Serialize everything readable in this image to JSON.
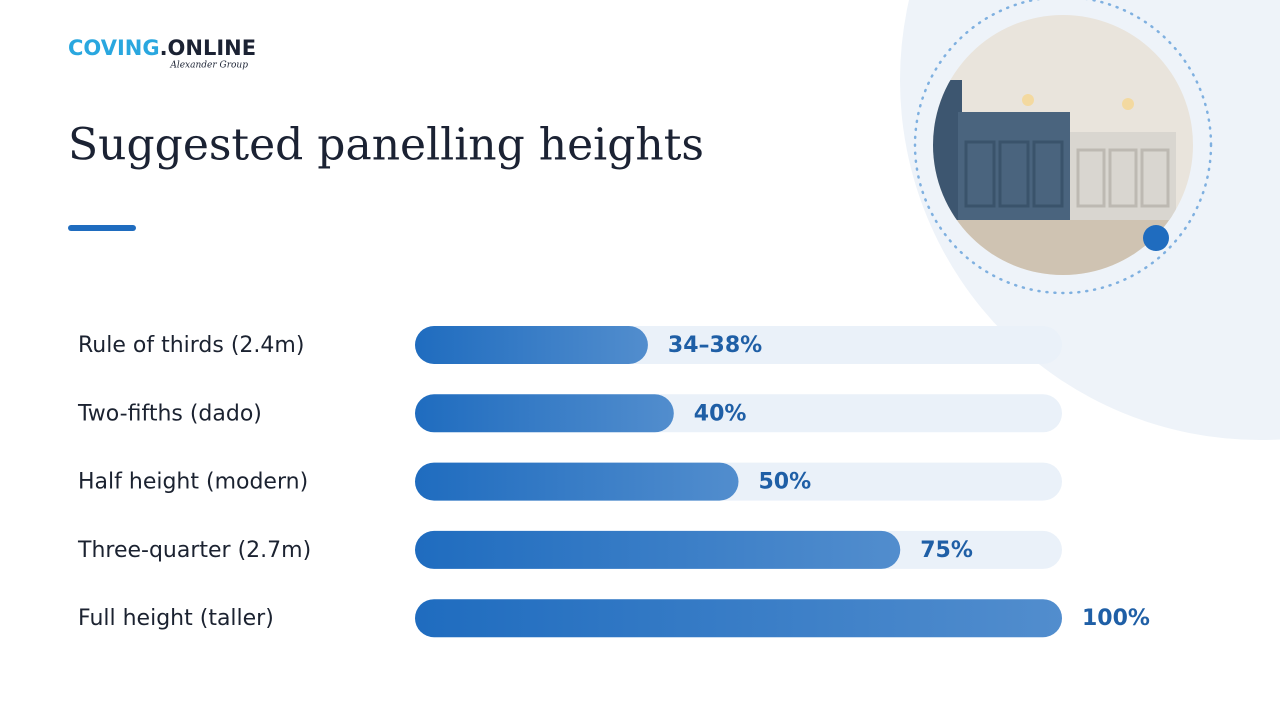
{
  "brand": {
    "primary": "COVING",
    "secondary": ".ONLINE",
    "tagline": "Alexander Group"
  },
  "chart_data": {
    "type": "bar",
    "orientation": "horizontal",
    "title": "Suggested panelling heights",
    "categories": [
      "Rule of thirds (2.4m)",
      "Two-fifths (dado)",
      "Half height (modern)",
      "Three-quarter (2.7m)",
      "Full height (taller)"
    ],
    "values": [
      36,
      40,
      50,
      75,
      100
    ],
    "value_labels": [
      "34–38%",
      "40%",
      "50%",
      "75%",
      "100%"
    ],
    "color": "#1f6cbf",
    "xlim": [
      0,
      100
    ]
  }
}
